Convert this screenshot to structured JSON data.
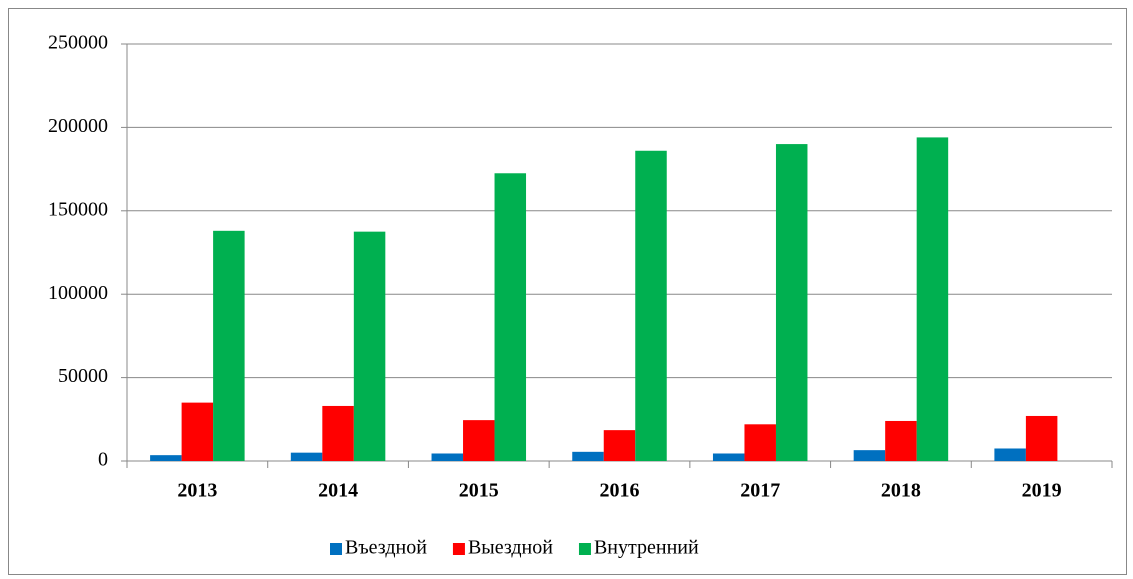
{
  "chart_data": {
    "type": "bar",
    "categories": [
      "2013",
      "2014",
      "2015",
      "2016",
      "2017",
      "2018",
      "2019"
    ],
    "series": [
      {
        "name": "Въездной",
        "color": "#0070c0",
        "values": [
          3500,
          5000,
          4500,
          5500,
          4500,
          6500,
          7500
        ]
      },
      {
        "name": "Выездной",
        "color": "#ff0000",
        "values": [
          35000,
          33000,
          24500,
          18500,
          22000,
          24000,
          27000
        ]
      },
      {
        "name": "Внутренний",
        "color": "#00b050",
        "values": [
          138000,
          137500,
          172500,
          186000,
          190000,
          194000,
          null
        ]
      }
    ],
    "ylim": [
      0,
      250000
    ],
    "yticks": [
      0,
      50000,
      100000,
      150000,
      200000,
      250000
    ],
    "grid": true,
    "legend": "bottom"
  }
}
